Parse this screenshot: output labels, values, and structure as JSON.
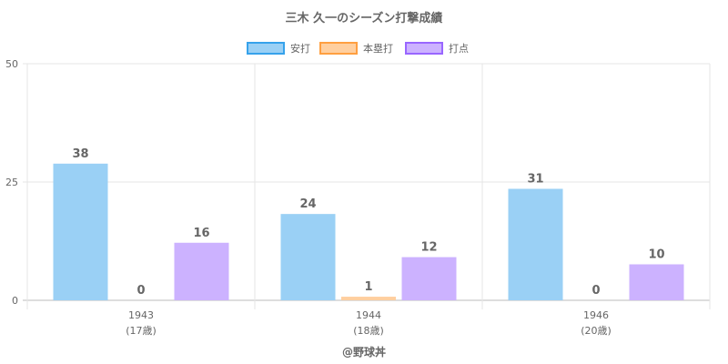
{
  "chart_data": {
    "type": "bar",
    "title": "三木 久一のシーズン打撃成績",
    "categories": [
      "1943",
      "1944",
      "1946"
    ],
    "category_sublabels": [
      "(17歳)",
      "(18歳)",
      "(20歳)"
    ],
    "series": [
      {
        "name": "安打",
        "values": [
          38,
          24,
          31
        ],
        "color": "#9ad0f5",
        "border": "#36a2eb"
      },
      {
        "name": "本塁打",
        "values": [
          0,
          1,
          0
        ],
        "color": "#ffcf9f",
        "border": "#ff9f40"
      },
      {
        "name": "打点",
        "values": [
          16,
          12,
          10
        ],
        "color": "#ccb2ff",
        "border": "#9966ff"
      }
    ],
    "ylim": [
      0,
      50
    ],
    "yticks": [
      "0",
      "25",
      "50"
    ],
    "bar_fill_progress": 0.76,
    "legend_position": "top",
    "grid": true,
    "footer": "@野球丼"
  }
}
